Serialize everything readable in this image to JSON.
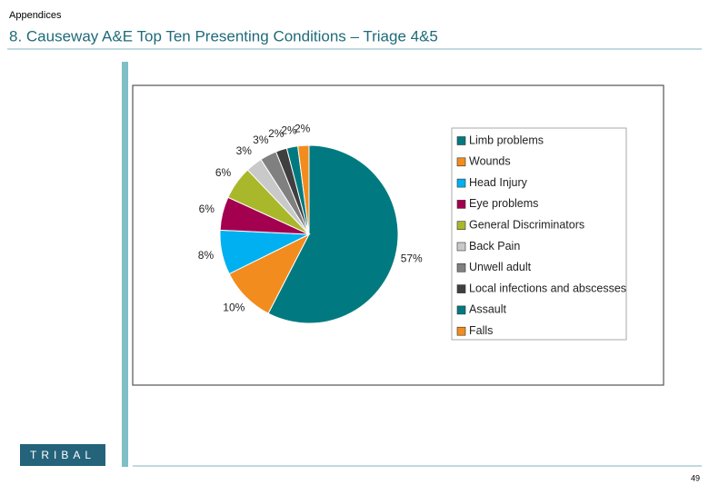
{
  "header": {
    "section": "Appendices",
    "title": "8. Causeway A&E Top Ten Presenting Conditions – Triage 4&5"
  },
  "chart_data": {
    "type": "pie",
    "categories": [
      "Limb problems",
      "Wounds",
      "Head Injury",
      "Eye problems",
      "General Discriminators",
      "Back Pain",
      "Unwell adult",
      "Local infections and abscesses",
      "Assault",
      "Falls"
    ],
    "values": [
      57,
      10,
      8,
      6,
      6,
      3,
      3,
      2,
      2,
      2
    ],
    "value_labels": [
      "57%",
      "10%",
      "8%",
      "6%",
      "6%",
      "3%",
      "3%",
      "2%",
      "2%",
      "2%"
    ],
    "colors": [
      "#007a80",
      "#f28c1e",
      "#00b0f0",
      "#a3004f",
      "#a9b82a",
      "#c9c9c9",
      "#808080",
      "#3f3f3f",
      "#007a80",
      "#f28c1e"
    ],
    "legend": "right"
  },
  "footer": {
    "logo": "TRIBAL",
    "page": "49"
  }
}
